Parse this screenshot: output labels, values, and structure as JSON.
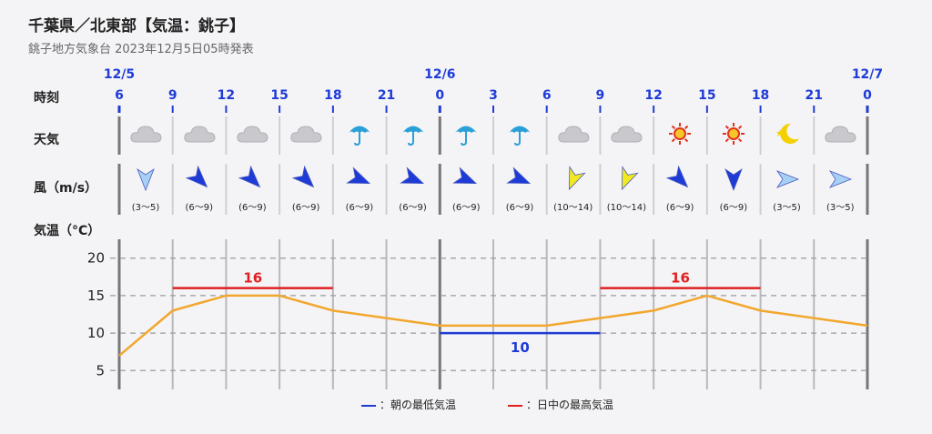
{
  "header": {
    "title": "千葉県／北東部【気温：銚子】",
    "subtitle": "銚子地方気象台 2023年12月5日05時発表"
  },
  "rows": {
    "time_label": "時刻",
    "weather_label": "天気",
    "wind_label": "風（m/s）",
    "temp_label": "気温（°C）"
  },
  "dates": [
    "12/5",
    "12/6",
    "12/7"
  ],
  "hours": [
    "6",
    "9",
    "12",
    "15",
    "18",
    "21",
    "0",
    "3",
    "6",
    "9",
    "12",
    "15",
    "18",
    "21",
    "0"
  ],
  "weather": [
    {
      "icon": "cloud-icon"
    },
    {
      "icon": "cloud-icon"
    },
    {
      "icon": "cloud-icon"
    },
    {
      "icon": "cloud-icon"
    },
    {
      "icon": "umbrella-icon"
    },
    {
      "icon": "umbrella-icon"
    },
    {
      "icon": "umbrella-icon"
    },
    {
      "icon": "umbrella-icon"
    },
    {
      "icon": "cloud-icon"
    },
    {
      "icon": "cloud-icon"
    },
    {
      "icon": "sun-icon"
    },
    {
      "icon": "sun-icon"
    },
    {
      "icon": "moon-icon"
    },
    {
      "icon": "cloud-icon"
    }
  ],
  "wind": [
    {
      "speed": "(3〜5)",
      "direction": "N",
      "color": "#a7d0f5"
    },
    {
      "speed": "(6〜9)",
      "direction": "NW",
      "color": "#1f3bd6"
    },
    {
      "speed": "(6〜9)",
      "direction": "NW",
      "color": "#1f3bd6"
    },
    {
      "speed": "(6〜9)",
      "direction": "NW",
      "color": "#1f3bd6"
    },
    {
      "speed": "(6〜9)",
      "direction": "WNW",
      "color": "#1f3bd6"
    },
    {
      "speed": "(6〜9)",
      "direction": "WNW",
      "color": "#1f3bd6"
    },
    {
      "speed": "(6〜9)",
      "direction": "WNW",
      "color": "#1f3bd6"
    },
    {
      "speed": "(6〜9)",
      "direction": "WNW",
      "color": "#1f3bd6"
    },
    {
      "speed": "(10〜14)",
      "direction": "NNE",
      "color": "#f2ea1e"
    },
    {
      "speed": "(10〜14)",
      "direction": "NNE",
      "color": "#f2ea1e"
    },
    {
      "speed": "(6〜9)",
      "direction": "NW",
      "color": "#1f3bd6"
    },
    {
      "speed": "(6〜9)",
      "direction": "N",
      "color": "#1f3bd6"
    },
    {
      "speed": "(3〜5)",
      "direction": "W",
      "color": "#a7d0f5"
    },
    {
      "speed": "(3〜5)",
      "direction": "W",
      "color": "#a7d0f5"
    }
  ],
  "legend": {
    "min_label": "：朝の最低気温",
    "max_label": "：日中の最高気温",
    "min_color": "#1f3bd6",
    "max_color": "#e02020"
  },
  "chart_data": {
    "type": "line",
    "ylabel": "気温（°C）",
    "ylim": [
      2,
      23
    ],
    "yticks": [
      5,
      10,
      15,
      20
    ],
    "x": [
      "12/5 6",
      "9",
      "12",
      "15",
      "18",
      "21",
      "12/6 0",
      "3",
      "6",
      "9",
      "12",
      "15",
      "18",
      "21",
      "12/7 0"
    ],
    "series": [
      {
        "values": [
          7,
          13,
          15,
          15,
          13,
          12,
          11,
          11,
          11,
          12,
          13,
          15,
          13,
          12,
          11
        ],
        "color": "#f2a72e"
      }
    ],
    "max_temps": [
      {
        "value": 16,
        "label": "16",
        "from": 1,
        "to": 4
      },
      {
        "value": 16,
        "label": "16",
        "from": 9,
        "to": 12
      }
    ],
    "min_temps": [
      {
        "value": 10,
        "label": "10",
        "from": 6,
        "to": 9
      }
    ],
    "grid": true
  }
}
